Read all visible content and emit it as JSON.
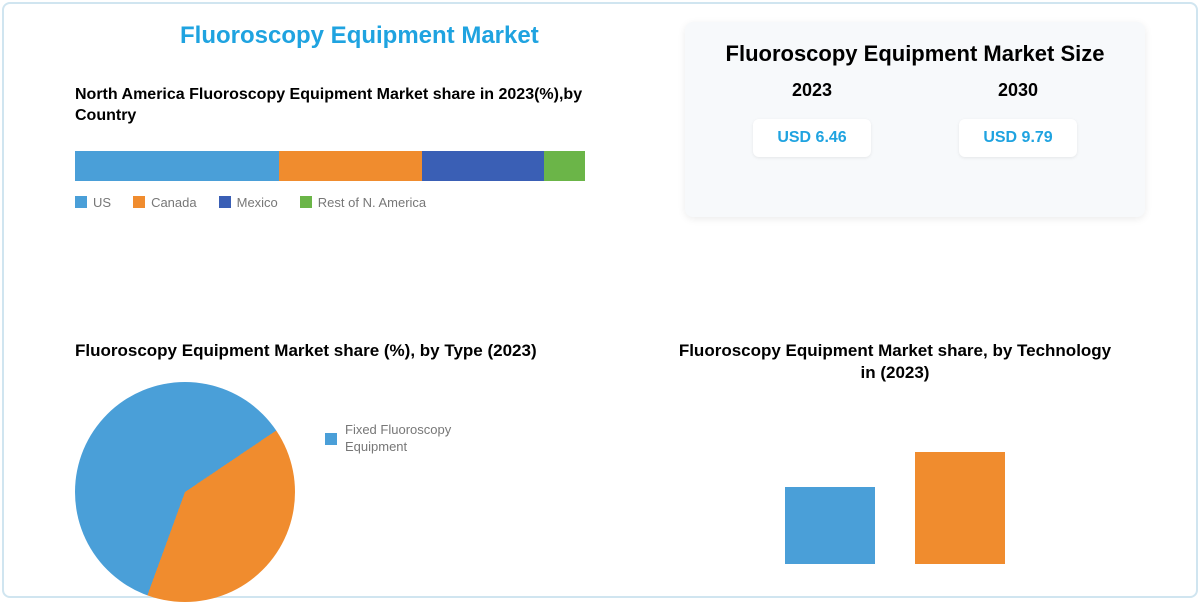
{
  "main_title": {
    "text": "Fluoroscopy Equipment Market",
    "color": "#1fa3e0",
    "fontsize": 24
  },
  "stacked": {
    "title": "North America Fluoroscopy Equipment Market share in 2023(%),by Country",
    "title_color": "#222222",
    "title_fontsize": 16,
    "segments": [
      {
        "label": "US",
        "value": 40,
        "color": "#4a9fd8"
      },
      {
        "label": "Canada",
        "value": 28,
        "color": "#f08c2e"
      },
      {
        "label": "Mexico",
        "value": 24,
        "color": "#3a5fb5"
      },
      {
        "label": "Rest of N. America",
        "value": 8,
        "color": "#6bb548"
      }
    ],
    "legend_color": "#777777",
    "legend_fontsize": 13
  },
  "pie": {
    "title": "Fluoroscopy Equipment Market share (%), by Type (2023)",
    "title_color": "#222222",
    "title_fontsize": 17,
    "slices": [
      {
        "label": "Fixed Fluoroscopy Equipment",
        "value": 60,
        "color": "#4a9fd8"
      },
      {
        "label": "",
        "value": 40,
        "color": "#f08c2e"
      }
    ],
    "legend_color": "#777777"
  },
  "card": {
    "title": "Fluoroscopy Equipment Market Size",
    "title_color": "#222222",
    "years": [
      "2023",
      "2030"
    ],
    "values": [
      "USD 6.46",
      "USD 9.79"
    ],
    "value_color": "#1fa3e0",
    "bg_color": "#f7f9fb"
  },
  "bars": {
    "title": "Fluoroscopy Equipment Market share, by Technology in (2023)",
    "title_color": "#222222",
    "title_fontsize": 17,
    "items": [
      {
        "value": 55,
        "color": "#4a9fd8"
      },
      {
        "value": 80,
        "color": "#f08c2e"
      }
    ],
    "max": 100
  },
  "background_color": "#ffffff"
}
